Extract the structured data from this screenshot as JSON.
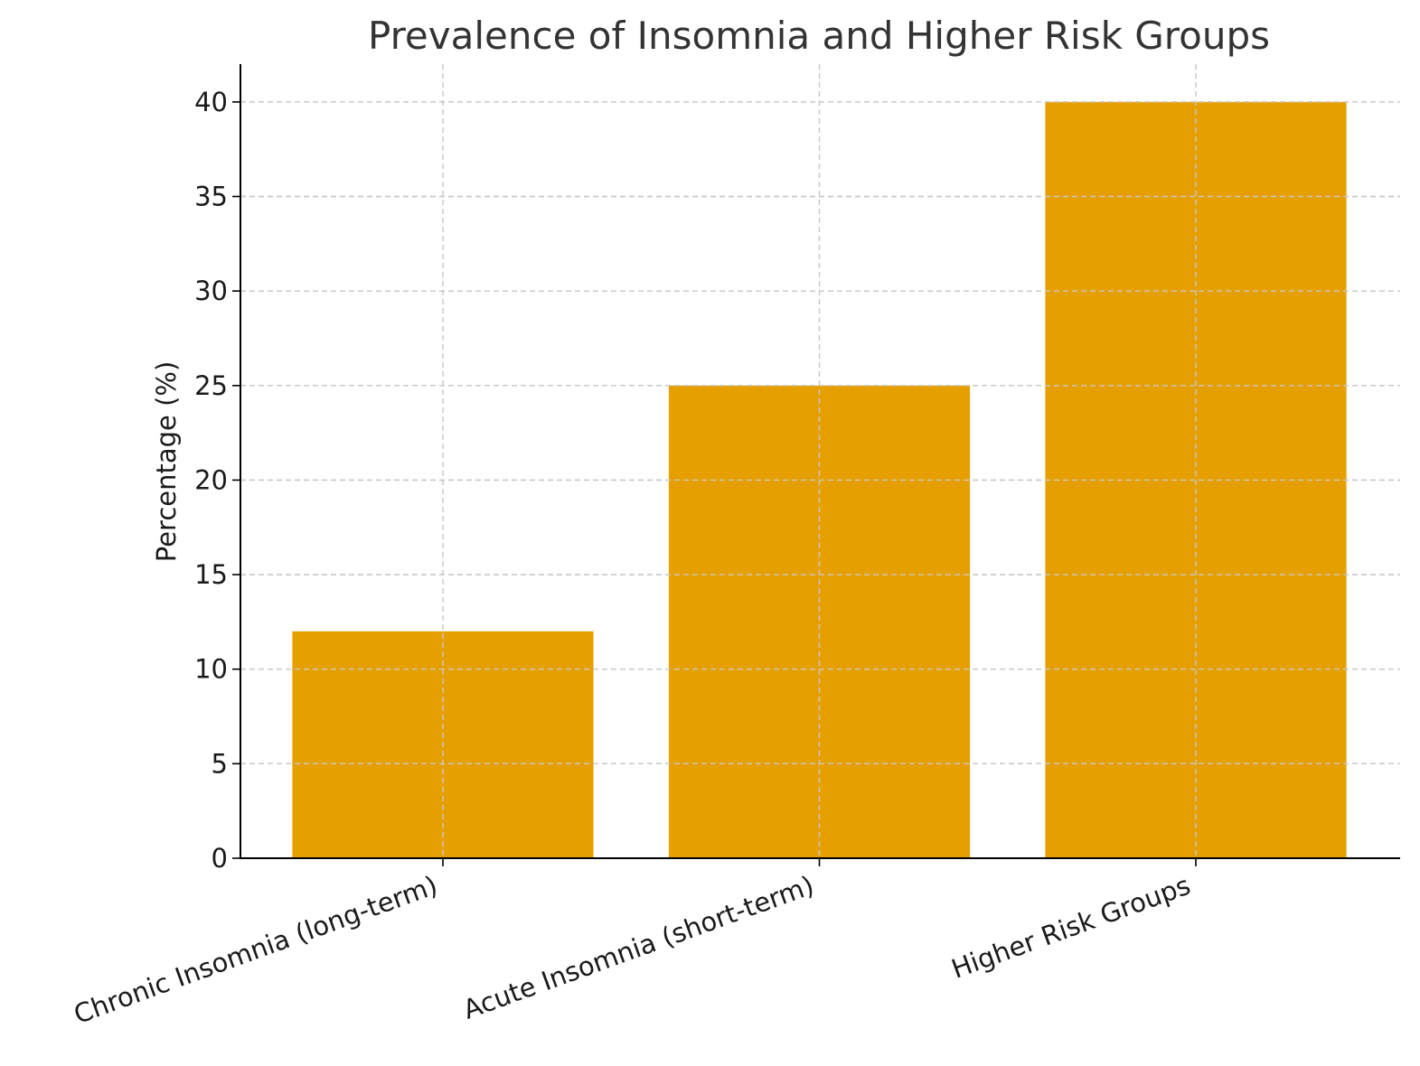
{
  "chart_data": {
    "type": "bar",
    "title": "Prevalence of Insomnia and Higher Risk Groups",
    "xlabel": "",
    "ylabel": "Percentage (%)",
    "categories": [
      "Chronic Insomnia (long-term)",
      "Acute Insomnia (short-term)",
      "Higher Risk Groups"
    ],
    "values": [
      12,
      25,
      40
    ],
    "ylim": [
      0,
      42
    ],
    "yticks": [
      0,
      5,
      10,
      15,
      20,
      25,
      30,
      35,
      40
    ],
    "grid": true,
    "legend": "none",
    "bar_color": "#E69F00"
  }
}
